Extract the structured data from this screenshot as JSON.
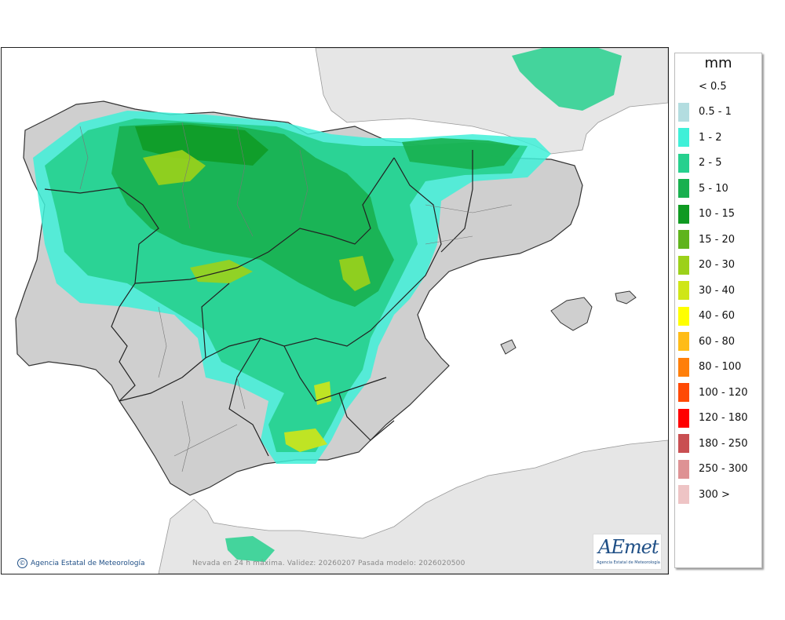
{
  "legend": {
    "unit": "mm",
    "items": [
      {
        "label": "< 0.5",
        "color": "#ffffff"
      },
      {
        "label": "0.5 - 1",
        "color": "#b3dde0"
      },
      {
        "label": "1 - 2",
        "color": "#3ff0d8"
      },
      {
        "label": "2 - 5",
        "color": "#27d08e"
      },
      {
        "label": "5 - 10",
        "color": "#18b04f"
      },
      {
        "label": "10 - 15",
        "color": "#0f9a22"
      },
      {
        "label": "15 - 20",
        "color": "#5fb41c"
      },
      {
        "label": "20 - 30",
        "color": "#9cd11a"
      },
      {
        "label": "30 - 40",
        "color": "#cfe617"
      },
      {
        "label": "40 - 60",
        "color": "#ffff00"
      },
      {
        "label": "60 - 80",
        "color": "#ffbc17"
      },
      {
        "label": "80 - 100",
        "color": "#ff7f0a"
      },
      {
        "label": "100 - 120",
        "color": "#ff4a05"
      },
      {
        "label": "120 - 180",
        "color": "#ff0000"
      },
      {
        "label": "180 - 250",
        "color": "#c94f52"
      },
      {
        "label": "250 - 300",
        "color": "#de9294"
      },
      {
        "label": "300 >",
        "color": "#eec4c5"
      }
    ]
  },
  "credit": "Agencia Estatal de Meteorología",
  "caption": "Nevada en 24 h máxima. Validez: 20260207 Pasada modelo: 2026020500",
  "logo": {
    "word": "AEmet",
    "sub": "Agencia Estatal de Meteorología"
  },
  "colors": {
    "land": "#cfcfcf",
    "sea": "#ffffff",
    "foreign_land": "#e6e6e6",
    "border": "#333333"
  }
}
